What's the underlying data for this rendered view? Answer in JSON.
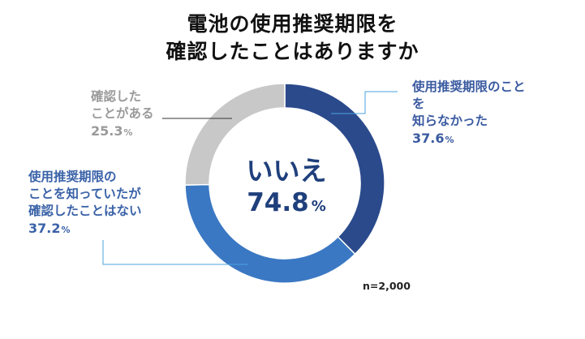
{
  "title_lines": [
    "電池の使用推奨期限を",
    "確認したことはありますか"
  ],
  "center": {
    "label": "いいえ",
    "value": "74.8",
    "unit": "%"
  },
  "sample_note": "n=2,000",
  "labels": {
    "gray": {
      "lines": [
        "確認した",
        "ことがある"
      ],
      "value": "25.3",
      "unit": "%"
    },
    "dark": {
      "lines": [
        "使用推奨期限のこと",
        "を",
        "知らなかった"
      ],
      "value": "37.6",
      "unit": "%"
    },
    "mid": {
      "lines": [
        "使用推奨期限の",
        "ことを知っていたが",
        "確認したことはない"
      ],
      "value": "37.2",
      "unit": "%"
    }
  },
  "colors": {
    "dark": "#2b4a8c",
    "mid": "#3b78c3",
    "gray": "#c8c8c8",
    "leader_gray": "#333333",
    "leader_blue": "#4aa3df"
  },
  "chart_data": {
    "type": "pie",
    "style": "donut",
    "title": "電池の使用推奨期限を確認したことはありますか",
    "note": "n=2,000",
    "center_text": "いいえ 74.8%",
    "slices": [
      {
        "label": "使用推奨期限のことを知らなかった",
        "value": 37.6,
        "color": "#2b4a8c"
      },
      {
        "label": "使用推奨期限のことを知っていたが確認したことはない",
        "value": 37.2,
        "color": "#3b78c3"
      },
      {
        "label": "確認したことがある",
        "value": 25.3,
        "color": "#c8c8c8"
      }
    ]
  }
}
